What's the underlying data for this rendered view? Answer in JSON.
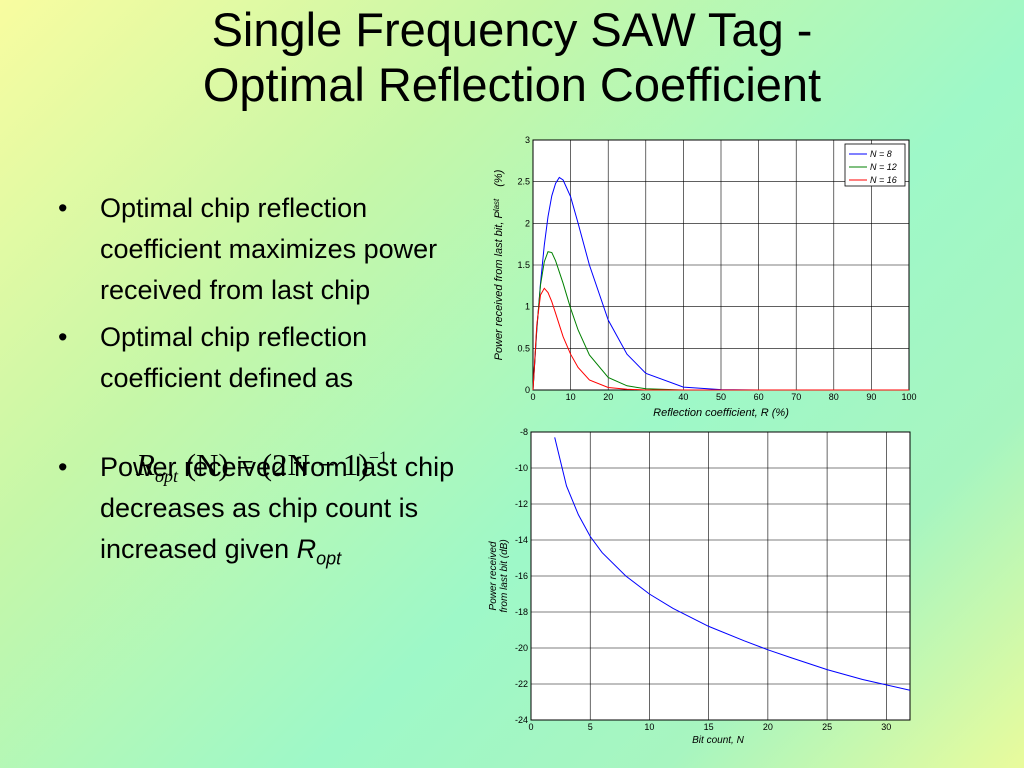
{
  "slide": {
    "title_line1": "Single Frequency SAW Tag -",
    "title_line2": "Optimal Reflection Coefficient",
    "bullets": [
      "Optimal chip reflection coefficient maximizes power received from last chip",
      "Optimal chip reflection coefficient defined as",
      "Power received from last chip decreases as chip count is increased given"
    ],
    "formula": {
      "lhs_symbol": "R",
      "lhs_subscript": "opt",
      "lhs_arg": "(N)",
      "equals": "=",
      "rhs_base": "(2N − 1)",
      "rhs_exponent": "−1"
    },
    "bullet3_symbol": "R",
    "bullet3_subscript": "opt",
    "bullet_glyph": "•"
  },
  "chart_data": [
    {
      "type": "line",
      "title": "",
      "xlabel": "Reflection coefficient, R (%)",
      "ylabel_main": "Power received from last bit, P",
      "ylabel_sub": "last",
      "ylabel_unit": "(%)",
      "xlim": [
        0,
        100
      ],
      "ylim": [
        0,
        3
      ],
      "xticks": [
        0,
        10,
        20,
        30,
        40,
        50,
        60,
        70,
        80,
        90,
        100
      ],
      "yticks": [
        0,
        0.5,
        1,
        1.5,
        2,
        2.5,
        3
      ],
      "grid": true,
      "legend_position": "top-right",
      "series": [
        {
          "name": "N = 8",
          "color": "#0000ff",
          "x": [
            0,
            1,
            2,
            3,
            4,
            5,
            6,
            7,
            8,
            10,
            12,
            15,
            20,
            25,
            30,
            40,
            50,
            60,
            70,
            80,
            90,
            100
          ],
          "y": [
            0,
            0.72,
            1.28,
            1.74,
            2.08,
            2.33,
            2.48,
            2.55,
            2.52,
            2.32,
            2.0,
            1.5,
            0.84,
            0.43,
            0.2,
            0.035,
            0.005,
            0,
            0,
            0,
            0,
            0
          ]
        },
        {
          "name": "N = 12",
          "color": "#008000",
          "x": [
            0,
            1,
            2,
            3,
            4,
            5,
            6,
            8,
            10,
            12,
            15,
            20,
            25,
            30,
            40,
            50,
            60,
            70,
            80,
            90,
            100
          ],
          "y": [
            0,
            0.74,
            1.26,
            1.54,
            1.66,
            1.65,
            1.55,
            1.28,
            0.98,
            0.72,
            0.42,
            0.15,
            0.05,
            0.015,
            0,
            0,
            0,
            0,
            0,
            0,
            0
          ]
        },
        {
          "name": "N = 16",
          "color": "#ff0000",
          "x": [
            0,
            1,
            2,
            3,
            4,
            5,
            6,
            8,
            10,
            12,
            15,
            20,
            25,
            30,
            40,
            50,
            60,
            70,
            80,
            90,
            100
          ],
          "y": [
            0,
            0.78,
            1.14,
            1.22,
            1.17,
            1.06,
            0.92,
            0.64,
            0.43,
            0.27,
            0.12,
            0.03,
            0.01,
            0,
            0,
            0,
            0,
            0,
            0,
            0,
            0
          ]
        }
      ]
    },
    {
      "type": "line",
      "title": "",
      "xlabel": "Bit count, N",
      "ylabel_line1": "Power received",
      "ylabel_line2": "from last bit (dB)",
      "xlim": [
        0,
        32
      ],
      "ylim": [
        -24,
        -8
      ],
      "xticks": [
        0,
        5,
        10,
        15,
        20,
        25,
        30
      ],
      "yticks": [
        -8,
        -10,
        -12,
        -14,
        -16,
        -18,
        -20,
        -22,
        -24
      ],
      "grid": true,
      "series": [
        {
          "name": "",
          "color": "#0000ff",
          "x": [
            2,
            3,
            4,
            5,
            6,
            8,
            10,
            12,
            15,
            18,
            20,
            22,
            25,
            28,
            30,
            32
          ],
          "y": [
            -8.3,
            -11.0,
            -12.6,
            -13.8,
            -14.7,
            -16.0,
            -17.0,
            -17.8,
            -18.8,
            -19.6,
            -20.1,
            -20.55,
            -21.2,
            -21.75,
            -22.05,
            -22.35
          ]
        }
      ]
    }
  ]
}
